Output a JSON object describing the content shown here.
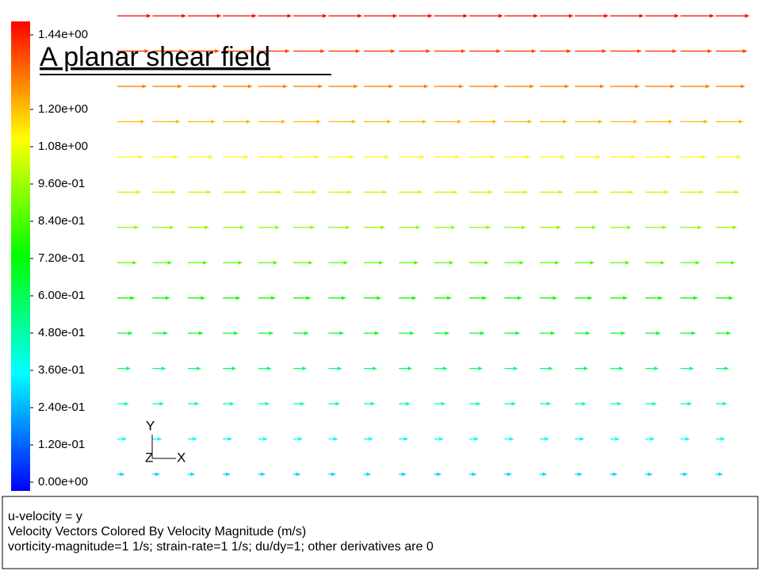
{
  "chart_data": {
    "type": "quiver",
    "title": "A planar shear field",
    "clim": [
      0,
      1.44
    ],
    "colorbar_ticks": [
      {
        "value": 1.44,
        "label": "1.44e+00"
      },
      {
        "value": 1.2,
        "label": "1.20e+00"
      },
      {
        "value": 1.08,
        "label": "1.08e+00"
      },
      {
        "value": 0.96,
        "label": "9.60e-01"
      },
      {
        "value": 0.84,
        "label": "8.40e-01"
      },
      {
        "value": 0.72,
        "label": "7.20e-01"
      },
      {
        "value": 0.6,
        "label": "6.00e-01"
      },
      {
        "value": 0.48,
        "label": "4.80e-01"
      },
      {
        "value": 0.36,
        "label": "3.60e-01"
      },
      {
        "value": 0.24,
        "label": "2.40e-01"
      },
      {
        "value": 0.12,
        "label": "1.20e-01"
      },
      {
        "value": 0,
        "label": "0.00e+00"
      }
    ],
    "speeds": [
      1.44,
      1.35,
      1.26,
      1.18,
      1.09,
      1.0,
      0.91,
      0.83,
      0.74,
      0.65,
      0.56,
      0.48,
      0.39,
      0.3
    ],
    "triad": {
      "y": "Y",
      "z": "Z",
      "x": "X"
    },
    "footer": [
      "u-velocity = y",
      "Velocity Vectors Colored By Velocity Magnitude (m/s)",
      "vorticity-magnitude=1 1/s; strain-rate=1 1/s; du/dy=1; other derivatives are 0"
    ]
  }
}
